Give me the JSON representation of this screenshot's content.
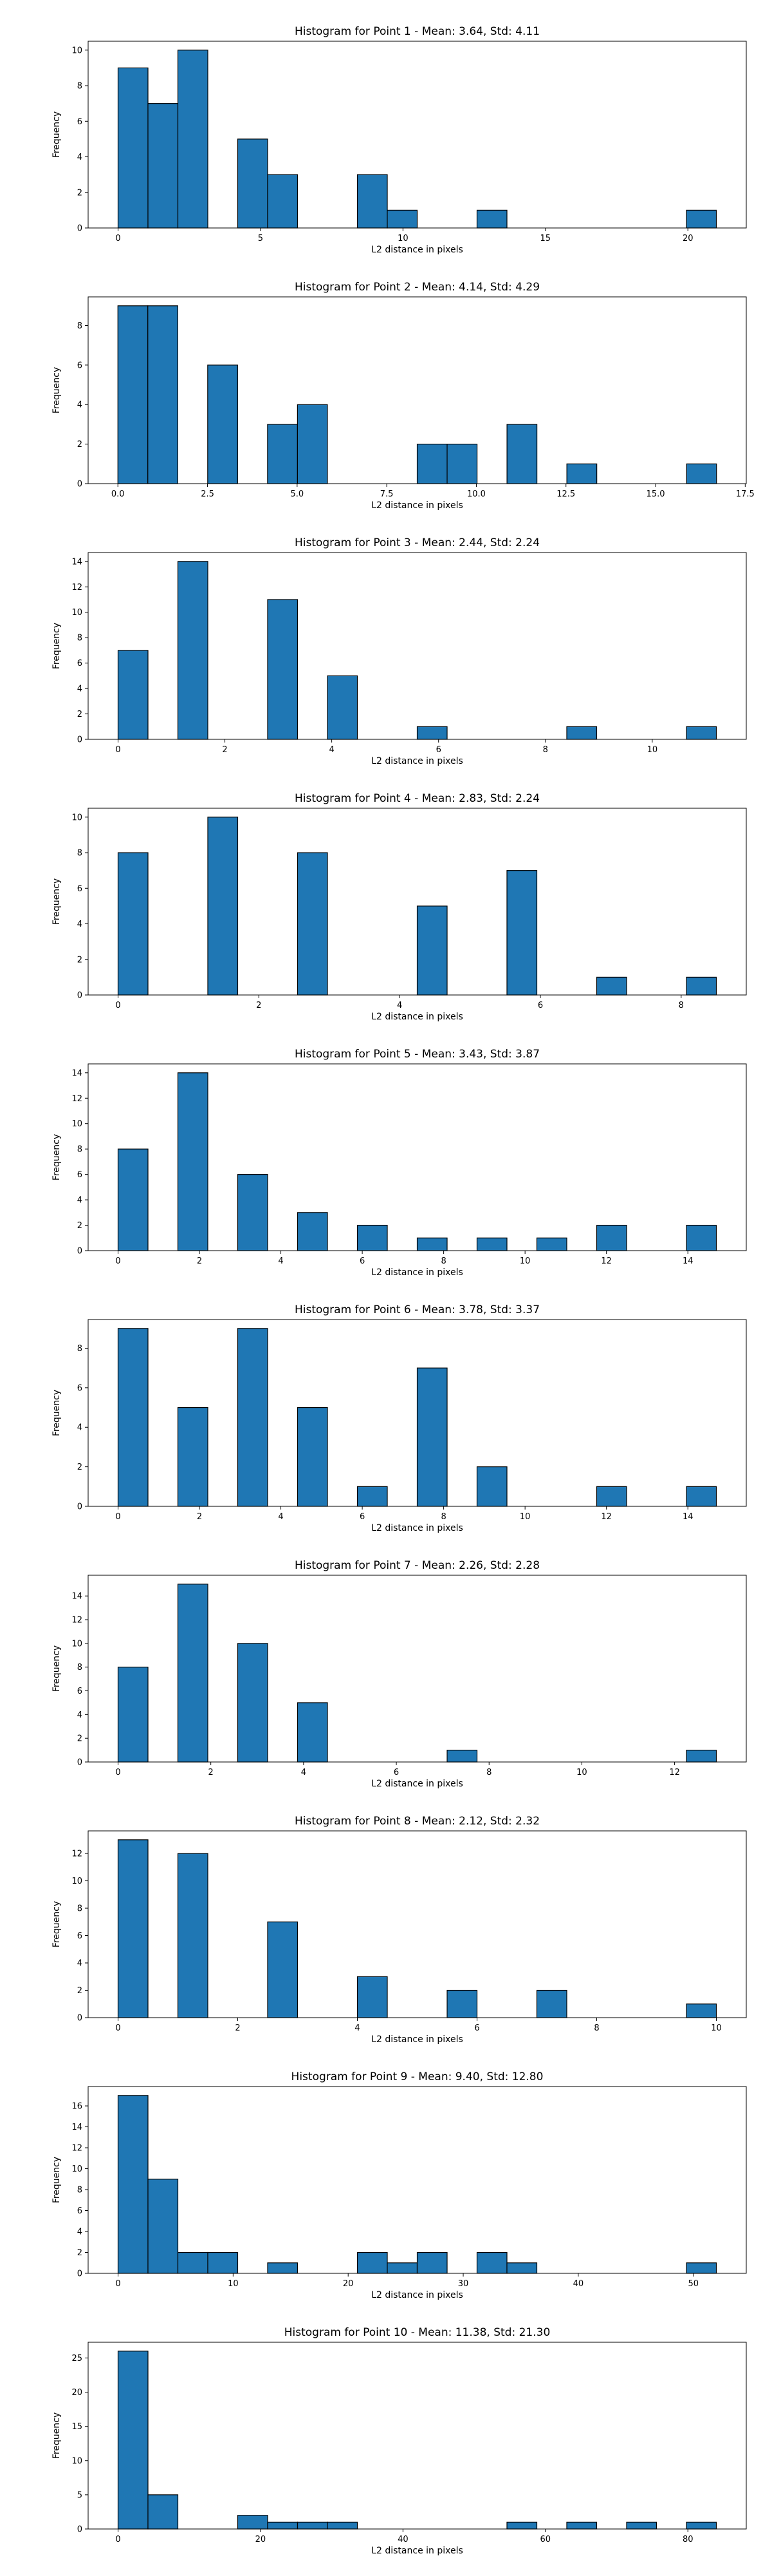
{
  "chart_data": [
    {
      "type": "bar",
      "title": "Histogram for Point 1 - Mean: 3.64, Std: 4.11",
      "xlabel": "L2 distance in pixels",
      "ylabel": "Frequency",
      "xlim": [
        -1.05,
        22.05
      ],
      "ylim": [
        0,
        10.5
      ],
      "xticks": [
        0,
        5,
        10,
        15,
        20
      ],
      "xtick_labels": [
        "0",
        "5",
        "10",
        "15",
        "20"
      ],
      "yticks": [
        0,
        2,
        4,
        6,
        8,
        10
      ],
      "ytick_labels": [
        "0",
        "2",
        "4",
        "6",
        "8",
        "10"
      ],
      "bin_edges": [
        0.0,
        1.05,
        2.1,
        3.15,
        4.2,
        5.25,
        6.3,
        7.35,
        8.4,
        9.45,
        10.5,
        11.55,
        12.6,
        13.65,
        14.7,
        15.75,
        16.8,
        17.85,
        18.9,
        19.95,
        21.0
      ],
      "values": [
        9,
        7,
        10,
        0,
        5,
        3,
        0,
        0,
        3,
        1,
        0,
        0,
        1,
        0,
        0,
        0,
        0,
        0,
        0,
        1
      ]
    },
    {
      "type": "bar",
      "title": "Histogram for Point 2 - Mean: 4.14, Std: 4.29",
      "xlabel": "L2 distance in pixels",
      "ylabel": "Frequency",
      "xlim": [
        -0.83,
        17.53
      ],
      "ylim": [
        0,
        9.45
      ],
      "xticks": [
        0,
        2.5,
        5,
        7.5,
        10,
        12.5,
        15,
        17.5
      ],
      "xtick_labels": [
        "0.0",
        "2.5",
        "5.0",
        "7.5",
        "10.0",
        "12.5",
        "15.0",
        "17.5"
      ],
      "yticks": [
        0,
        2,
        4,
        6,
        8
      ],
      "ytick_labels": [
        "0",
        "2",
        "4",
        "6",
        "8"
      ],
      "bin_edges": [
        0.0,
        0.835,
        1.67,
        2.505,
        3.34,
        4.175,
        5.01,
        5.845,
        6.68,
        7.515,
        8.35,
        9.185,
        10.02,
        10.855,
        11.69,
        12.525,
        13.36,
        14.195,
        15.03,
        15.865,
        16.7
      ],
      "values": [
        9,
        9,
        0,
        6,
        0,
        3,
        4,
        0,
        0,
        0,
        2,
        2,
        0,
        3,
        0,
        1,
        0,
        0,
        0,
        1
      ]
    },
    {
      "type": "bar",
      "title": "Histogram for Point 3 - Mean: 2.44, Std: 2.24",
      "xlabel": "L2 distance in pixels",
      "ylabel": "Frequency",
      "xlim": [
        -0.56,
        11.76
      ],
      "ylim": [
        0,
        14.7
      ],
      "xticks": [
        0,
        2,
        4,
        6,
        8,
        10
      ],
      "xtick_labels": [
        "0",
        "2",
        "4",
        "6",
        "8",
        "10"
      ],
      "yticks": [
        0,
        2,
        4,
        6,
        8,
        10,
        12,
        14
      ],
      "ytick_labels": [
        "0",
        "2",
        "4",
        "6",
        "8",
        "10",
        "12",
        "14"
      ],
      "bin_edges": [
        0.0,
        0.56,
        1.12,
        1.68,
        2.24,
        2.8,
        3.36,
        3.92,
        4.48,
        5.04,
        5.6,
        6.16,
        6.72,
        7.28,
        7.84,
        8.4,
        8.96,
        9.52,
        10.08,
        10.64,
        11.2
      ],
      "values": [
        7,
        0,
        14,
        0,
        0,
        11,
        0,
        5,
        0,
        0,
        1,
        0,
        0,
        0,
        0,
        1,
        0,
        0,
        0,
        1
      ]
    },
    {
      "type": "bar",
      "title": "Histogram for Point 4 - Mean: 2.83, Std: 2.24",
      "xlabel": "L2 distance in pixels",
      "ylabel": "Frequency",
      "xlim": [
        -0.425,
        8.925
      ],
      "ylim": [
        0,
        10.5
      ],
      "xticks": [
        0,
        2,
        4,
        6,
        8
      ],
      "xtick_labels": [
        "0",
        "2",
        "4",
        "6",
        "8"
      ],
      "yticks": [
        0,
        2,
        4,
        6,
        8,
        10
      ],
      "ytick_labels": [
        "0",
        "2",
        "4",
        "6",
        "8",
        "10"
      ],
      "bin_edges": [
        0.0,
        0.425,
        0.85,
        1.275,
        1.7,
        2.125,
        2.55,
        2.975,
        3.4,
        3.825,
        4.25,
        4.675,
        5.1,
        5.525,
        5.95,
        6.375,
        6.8,
        7.225,
        7.65,
        8.075,
        8.5
      ],
      "values": [
        8,
        0,
        0,
        10,
        0,
        0,
        8,
        0,
        0,
        0,
        5,
        0,
        0,
        7,
        0,
        0,
        1,
        0,
        0,
        1
      ]
    },
    {
      "type": "bar",
      "title": "Histogram for Point 5 - Mean: 3.43, Std: 3.87",
      "xlabel": "L2 distance in pixels",
      "ylabel": "Frequency",
      "xlim": [
        -0.735,
        15.435
      ],
      "ylim": [
        0,
        14.7
      ],
      "xticks": [
        0,
        2,
        4,
        6,
        8,
        10,
        12,
        14
      ],
      "xtick_labels": [
        "0",
        "2",
        "4",
        "6",
        "8",
        "10",
        "12",
        "14"
      ],
      "yticks": [
        0,
        2,
        4,
        6,
        8,
        10,
        12,
        14
      ],
      "ytick_labels": [
        "0",
        "2",
        "4",
        "6",
        "8",
        "10",
        "12",
        "14"
      ],
      "bin_edges": [
        0.0,
        0.735,
        1.47,
        2.205,
        2.94,
        3.675,
        4.41,
        5.145,
        5.88,
        6.615,
        7.35,
        8.085,
        8.82,
        9.555,
        10.29,
        11.025,
        11.76,
        12.495,
        13.23,
        13.965,
        14.7
      ],
      "values": [
        8,
        0,
        14,
        0,
        6,
        0,
        3,
        0,
        2,
        0,
        1,
        0,
        1,
        0,
        1,
        0,
        2,
        0,
        0,
        2
      ]
    },
    {
      "type": "bar",
      "title": "Histogram for Point 6 - Mean: 3.78, Std: 3.37",
      "xlabel": "L2 distance in pixels",
      "ylabel": "Frequency",
      "xlim": [
        -0.735,
        15.435
      ],
      "ylim": [
        0,
        9.45
      ],
      "xticks": [
        0,
        2,
        4,
        6,
        8,
        10,
        12,
        14
      ],
      "xtick_labels": [
        "0",
        "2",
        "4",
        "6",
        "8",
        "10",
        "12",
        "14"
      ],
      "yticks": [
        0,
        2,
        4,
        6,
        8
      ],
      "ytick_labels": [
        "0",
        "2",
        "4",
        "6",
        "8"
      ],
      "bin_edges": [
        0.0,
        0.735,
        1.47,
        2.205,
        2.94,
        3.675,
        4.41,
        5.145,
        5.88,
        6.615,
        7.35,
        8.085,
        8.82,
        9.555,
        10.29,
        11.025,
        11.76,
        12.495,
        13.23,
        13.965,
        14.7
      ],
      "values": [
        9,
        0,
        5,
        0,
        9,
        0,
        5,
        0,
        1,
        0,
        7,
        0,
        2,
        0,
        0,
        0,
        1,
        0,
        0,
        1
      ]
    },
    {
      "type": "bar",
      "title": "Histogram for Point 7 - Mean: 2.26, Std: 2.28",
      "xlabel": "L2 distance in pixels",
      "ylabel": "Frequency",
      "xlim": [
        -0.645,
        13.545
      ],
      "ylim": [
        0,
        15.75
      ],
      "xticks": [
        0,
        2,
        4,
        6,
        8,
        10,
        12
      ],
      "xtick_labels": [
        "0",
        "2",
        "4",
        "6",
        "8",
        "10",
        "12"
      ],
      "yticks": [
        0,
        2,
        4,
        6,
        8,
        10,
        12,
        14
      ],
      "ytick_labels": [
        "0",
        "2",
        "4",
        "6",
        "8",
        "10",
        "12",
        "14"
      ],
      "bin_edges": [
        0.0,
        0.645,
        1.29,
        1.935,
        2.58,
        3.225,
        3.87,
        4.515,
        5.16,
        5.805,
        6.45,
        7.095,
        7.74,
        8.385,
        9.03,
        9.675,
        10.32,
        10.965,
        11.61,
        12.255,
        12.9
      ],
      "values": [
        8,
        0,
        15,
        0,
        10,
        0,
        5,
        0,
        0,
        0,
        0,
        1,
        0,
        0,
        0,
        0,
        0,
        0,
        0,
        1
      ]
    },
    {
      "type": "bar",
      "title": "Histogram for Point 8 - Mean: 2.12, Std: 2.32",
      "xlabel": "L2 distance in pixels",
      "ylabel": "Frequency",
      "xlim": [
        -0.5,
        10.5
      ],
      "ylim": [
        0,
        13.65
      ],
      "xticks": [
        0,
        2,
        4,
        6,
        8,
        10
      ],
      "xtick_labels": [
        "0",
        "2",
        "4",
        "6",
        "8",
        "10"
      ],
      "yticks": [
        0,
        2,
        4,
        6,
        8,
        10,
        12
      ],
      "ytick_labels": [
        "0",
        "2",
        "4",
        "6",
        "8",
        "10",
        "12"
      ],
      "bin_edges": [
        0.0,
        0.5,
        1.0,
        1.5,
        2.0,
        2.5,
        3.0,
        3.5,
        4.0,
        4.5,
        5.0,
        5.5,
        6.0,
        6.5,
        7.0,
        7.5,
        8.0,
        8.5,
        9.0,
        9.5,
        10.0
      ],
      "values": [
        13,
        0,
        12,
        0,
        0,
        7,
        0,
        0,
        3,
        0,
        0,
        2,
        0,
        0,
        2,
        0,
        0,
        0,
        0,
        1
      ]
    },
    {
      "type": "bar",
      "title": "Histogram for Point 9 - Mean: 9.40, Std: 12.80",
      "xlabel": "L2 distance in pixels",
      "ylabel": "Frequency",
      "xlim": [
        -2.6,
        54.6
      ],
      "ylim": [
        0,
        17.85
      ],
      "xticks": [
        0,
        10,
        20,
        30,
        40,
        50
      ],
      "xtick_labels": [
        "0",
        "10",
        "20",
        "30",
        "40",
        "50"
      ],
      "yticks": [
        0,
        2,
        4,
        6,
        8,
        10,
        12,
        14,
        16
      ],
      "ytick_labels": [
        "0",
        "2",
        "4",
        "6",
        "8",
        "10",
        "12",
        "14",
        "16"
      ],
      "bin_edges": [
        0.0,
        2.6,
        5.2,
        7.8,
        10.4,
        13.0,
        15.6,
        18.2,
        20.8,
        23.4,
        26.0,
        28.6,
        31.2,
        33.8,
        36.4,
        39.0,
        41.6,
        44.2,
        46.8,
        49.4,
        52.0
      ],
      "values": [
        17,
        9,
        2,
        2,
        0,
        1,
        0,
        0,
        2,
        1,
        2,
        0,
        2,
        1,
        0,
        0,
        0,
        0,
        0,
        1
      ]
    },
    {
      "type": "bar",
      "title": "Histogram for Point 10 - Mean: 11.38, Std: 21.30",
      "xlabel": "L2 distance in pixels",
      "ylabel": "Frequency",
      "xlim": [
        -4.2,
        88.2
      ],
      "ylim": [
        0,
        27.3
      ],
      "xticks": [
        0,
        20,
        40,
        60,
        80
      ],
      "xtick_labels": [
        "0",
        "20",
        "40",
        "60",
        "80"
      ],
      "yticks": [
        0,
        5,
        10,
        15,
        20,
        25
      ],
      "ytick_labels": [
        "0",
        "5",
        "10",
        "15",
        "20",
        "25"
      ],
      "bin_edges": [
        0.0,
        4.2,
        8.4,
        12.6,
        16.8,
        21.0,
        25.2,
        29.4,
        33.6,
        37.8,
        42.0,
        46.2,
        50.4,
        54.6,
        58.8,
        63.0,
        67.2,
        71.4,
        75.6,
        79.8,
        84.0
      ],
      "values": [
        26,
        5,
        0,
        0,
        2,
        1,
        1,
        1,
        0,
        0,
        0,
        0,
        0,
        1,
        0,
        1,
        0,
        1,
        0,
        1
      ]
    }
  ]
}
